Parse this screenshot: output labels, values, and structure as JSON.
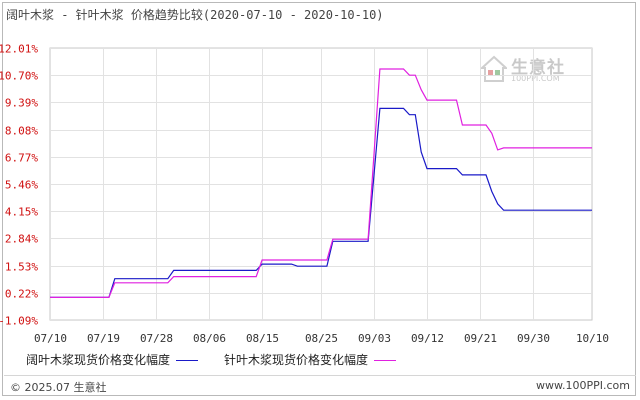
{
  "chart_title": "阔叶木浆 - 针叶木浆 价格趋势比较(2020-07-10 - 2020-10-10)",
  "watermark": {
    "brand": "生意社",
    "site": "100PPI.COM",
    "icon": "house-logo-icon"
  },
  "footer": {
    "copyright": "© 2025.07 生意社",
    "website": "www.100PPI.com"
  },
  "colors": {
    "series1": "#1a1ac8",
    "series2": "#e020e0",
    "grid": "#e2e2e2",
    "ytick": "#d01010",
    "xtick": "#333333"
  },
  "chart_data": {
    "type": "line",
    "title": "阔叶木浆 - 针叶木浆 价格趋势比较(2020-07-10 - 2020-10-10)",
    "xlabel": "",
    "ylabel": "",
    "x_ticks": [
      "07/10",
      "07/19",
      "07/28",
      "08/06",
      "08/15",
      "08/25",
      "09/03",
      "09/12",
      "09/21",
      "09/30",
      "10/10"
    ],
    "y_ticks": [
      "12.01%",
      "10.70%",
      "9.39%",
      "8.08%",
      "6.77%",
      "5.46%",
      "4.15%",
      "2.84%",
      "1.53%",
      "0.22%",
      "-1.09%"
    ],
    "ylim": [
      -1.09,
      12.01
    ],
    "grid": true,
    "legend_position": "bottom",
    "series": [
      {
        "name": "阔叶木浆现货价格变化幅度",
        "points": [
          [
            "07/10",
            0.0
          ],
          [
            "07/20",
            0.0
          ],
          [
            "07/21",
            0.9
          ],
          [
            "07/30",
            0.9
          ],
          [
            "07/31",
            1.3
          ],
          [
            "08/14",
            1.3
          ],
          [
            "08/15",
            1.6
          ],
          [
            "08/20",
            1.6
          ],
          [
            "08/21",
            1.5
          ],
          [
            "08/26",
            1.5
          ],
          [
            "08/27",
            2.7
          ],
          [
            "09/02",
            2.7
          ],
          [
            "09/04",
            9.1
          ],
          [
            "09/08",
            9.1
          ],
          [
            "09/09",
            8.8
          ],
          [
            "09/10",
            8.8
          ],
          [
            "09/11",
            7.0
          ],
          [
            "09/12",
            6.2
          ],
          [
            "09/17",
            6.2
          ],
          [
            "09/18",
            5.9
          ],
          [
            "09/22",
            5.9
          ],
          [
            "09/23",
            5.1
          ],
          [
            "09/24",
            4.5
          ],
          [
            "09/25",
            4.2
          ],
          [
            "10/10",
            4.2
          ]
        ]
      },
      {
        "name": "针叶木浆现货价格变化幅度",
        "points": [
          [
            "07/10",
            0.0
          ],
          [
            "07/20",
            0.0
          ],
          [
            "07/21",
            0.7
          ],
          [
            "07/30",
            0.7
          ],
          [
            "07/31",
            1.0
          ],
          [
            "08/14",
            1.0
          ],
          [
            "08/15",
            1.8
          ],
          [
            "08/26",
            1.8
          ],
          [
            "08/27",
            2.8
          ],
          [
            "09/02",
            2.8
          ],
          [
            "09/04",
            11.0
          ],
          [
            "09/08",
            11.0
          ],
          [
            "09/09",
            10.7
          ],
          [
            "09/10",
            10.7
          ],
          [
            "09/11",
            10.0
          ],
          [
            "09/12",
            9.5
          ],
          [
            "09/17",
            9.5
          ],
          [
            "09/18",
            8.3
          ],
          [
            "09/22",
            8.3
          ],
          [
            "09/23",
            7.9
          ],
          [
            "09/24",
            7.1
          ],
          [
            "09/25",
            7.2
          ],
          [
            "10/10",
            7.2
          ]
        ]
      }
    ]
  }
}
